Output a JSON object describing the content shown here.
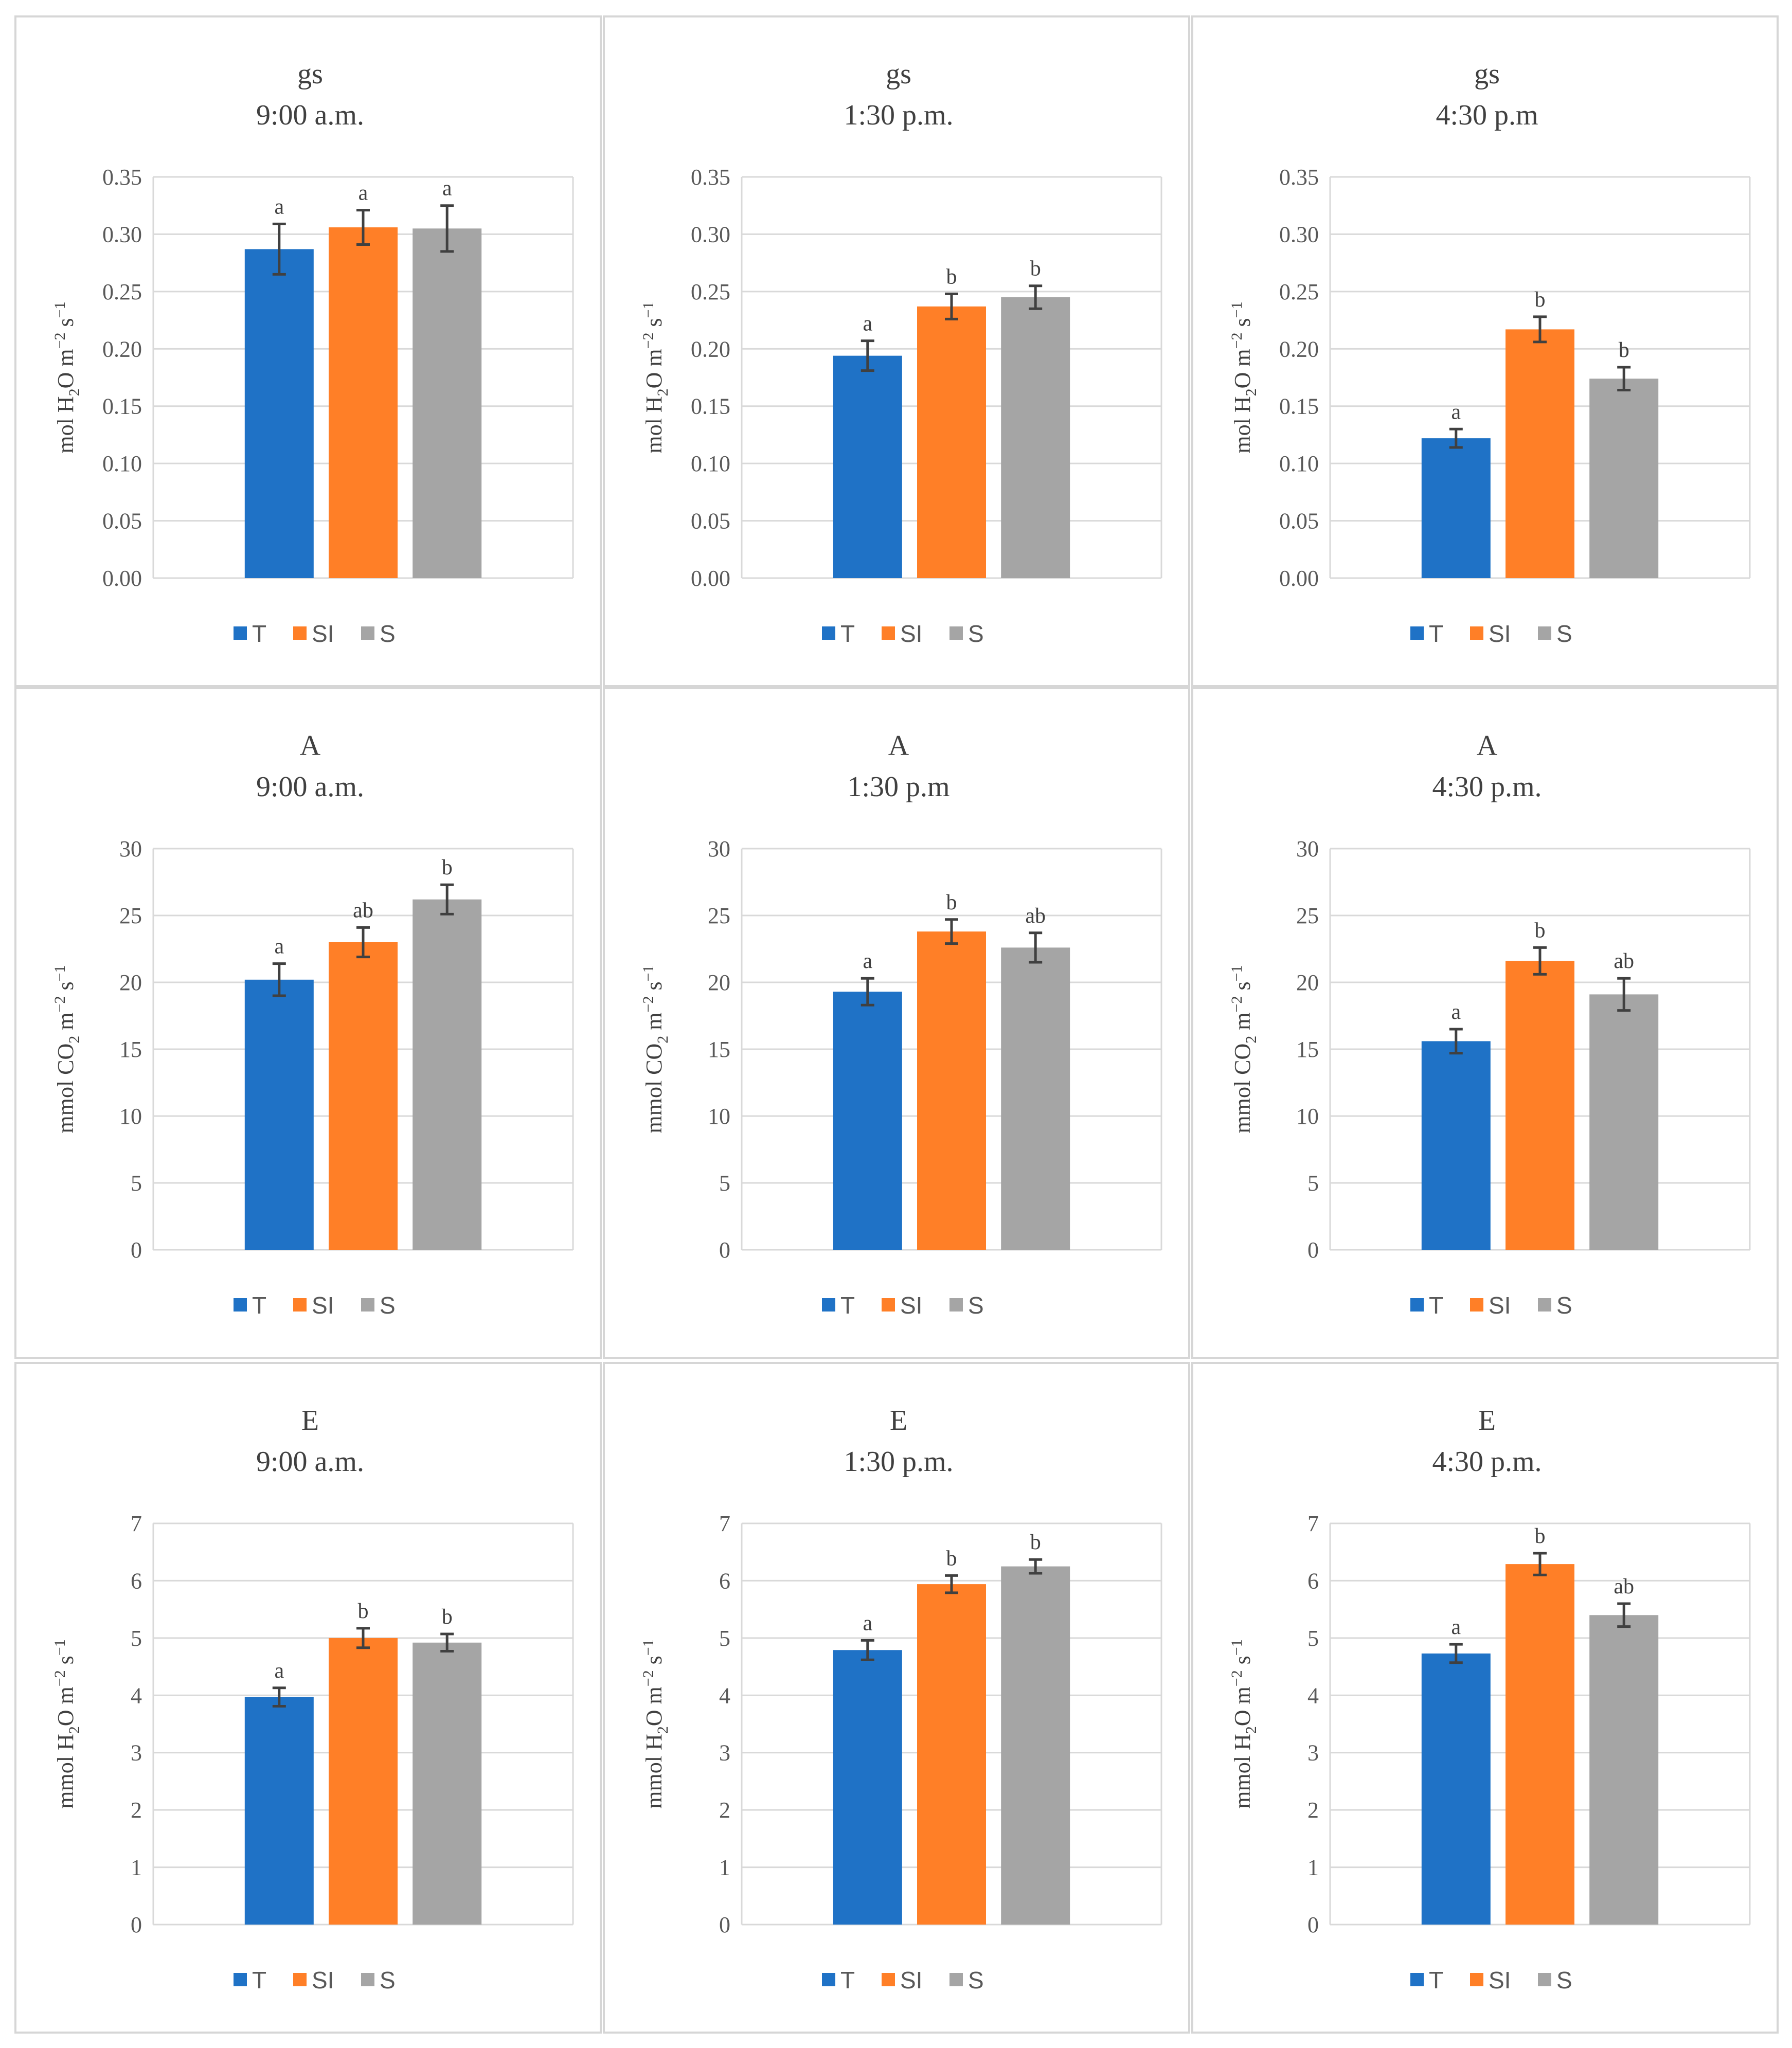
{
  "colors": {
    "T": "#1f72c6",
    "SI": "#ff7f27",
    "S": "#a5a5a5",
    "grid": "#d9d9d9",
    "error": "#404040"
  },
  "chart_data": [
    {
      "type": "bar",
      "variable": "gs",
      "time": "9:00 a.m.",
      "ylabel": [
        "mol H",
        "2",
        "O m",
        "−2",
        " s",
        "−1"
      ],
      "ylim": [
        0,
        0.35
      ],
      "tick_step": 0.05,
      "decimals": 2,
      "categories": [
        "T",
        "SI",
        "S"
      ],
      "values": [
        0.287,
        0.306,
        0.305
      ],
      "errors": [
        0.022,
        0.015,
        0.02
      ],
      "letters": [
        "a",
        "a",
        "a"
      ],
      "legend": [
        "T",
        "SI",
        "S"
      ]
    },
    {
      "type": "bar",
      "variable": "gs",
      "time": "1:30 p.m.",
      "ylabel": [
        "mol H",
        "2",
        "O m",
        "−2",
        " s",
        "−1"
      ],
      "ylim": [
        0,
        0.35
      ],
      "tick_step": 0.05,
      "decimals": 2,
      "categories": [
        "T",
        "SI",
        "S"
      ],
      "values": [
        0.194,
        0.237,
        0.245
      ],
      "errors": [
        0.013,
        0.011,
        0.01
      ],
      "letters": [
        "a",
        "b",
        "b"
      ],
      "legend": [
        "T",
        "SI",
        "S"
      ]
    },
    {
      "type": "bar",
      "variable": "gs",
      "time": "4:30 p.m",
      "ylabel": [
        "mol H",
        "2",
        "O m",
        "−2",
        " s",
        "−1"
      ],
      "ylim": [
        0,
        0.35
      ],
      "tick_step": 0.05,
      "decimals": 2,
      "categories": [
        "T",
        "SI",
        "S"
      ],
      "values": [
        0.122,
        0.217,
        0.174
      ],
      "errors": [
        0.008,
        0.011,
        0.01
      ],
      "letters": [
        "a",
        "b",
        "b"
      ],
      "legend": [
        "T",
        "SI",
        "S"
      ]
    },
    {
      "type": "bar",
      "variable": "A",
      "time": "9:00 a.m.",
      "ylabel": [
        "mmol CO",
        "2",
        " m",
        "−2",
        " s",
        "−1"
      ],
      "ylim": [
        0,
        30
      ],
      "tick_step": 5,
      "decimals": 0,
      "categories": [
        "T",
        "SI",
        "S"
      ],
      "values": [
        20.2,
        23.0,
        26.2
      ],
      "errors": [
        1.2,
        1.1,
        1.1
      ],
      "letters": [
        "a",
        "ab",
        "b"
      ],
      "legend": [
        "T",
        "SI",
        "S"
      ]
    },
    {
      "type": "bar",
      "variable": "A",
      "time": "1:30 p.m",
      "ylabel": [
        "mmol CO",
        "2",
        " m",
        "−2",
        " s",
        "−1"
      ],
      "ylim": [
        0,
        30
      ],
      "tick_step": 5,
      "decimals": 0,
      "categories": [
        "T",
        "SI",
        "S"
      ],
      "values": [
        19.3,
        23.8,
        22.6
      ],
      "errors": [
        1.0,
        0.9,
        1.1
      ],
      "letters": [
        "a",
        "b",
        "ab"
      ],
      "legend": [
        "T",
        "SI",
        "S"
      ]
    },
    {
      "type": "bar",
      "variable": "A",
      "time": "4:30 p.m.",
      "ylabel": [
        "mmol CO",
        "2",
        " m",
        "−2",
        " s",
        "−1"
      ],
      "ylim": [
        0,
        30
      ],
      "tick_step": 5,
      "decimals": 0,
      "categories": [
        "T",
        "SI",
        "S"
      ],
      "values": [
        15.6,
        21.6,
        19.1
      ],
      "errors": [
        0.9,
        1.0,
        1.2
      ],
      "letters": [
        "a",
        "b",
        "ab"
      ],
      "legend": [
        "T",
        "SI",
        "S"
      ]
    },
    {
      "type": "bar",
      "variable": "E",
      "time": "9:00 a.m.",
      "ylabel": [
        "mmol H",
        "2",
        "O m",
        "−2",
        " s",
        "−1"
      ],
      "ylim": [
        0,
        7
      ],
      "tick_step": 1,
      "decimals": 0,
      "categories": [
        "T",
        "SI",
        "S"
      ],
      "values": [
        3.97,
        5.0,
        4.92
      ],
      "errors": [
        0.16,
        0.17,
        0.15
      ],
      "letters": [
        "a",
        "b",
        "b"
      ],
      "legend": [
        "T",
        "SI",
        "S"
      ]
    },
    {
      "type": "bar",
      "variable": "E",
      "time": "1:30 p.m.",
      "ylabel": [
        "mmol H",
        "2",
        "O m",
        "−2",
        " s",
        "−1"
      ],
      "ylim": [
        0,
        7
      ],
      "tick_step": 1,
      "decimals": 0,
      "categories": [
        "T",
        "SI",
        "S"
      ],
      "values": [
        4.79,
        5.94,
        6.25
      ],
      "errors": [
        0.17,
        0.15,
        0.12
      ],
      "letters": [
        "a",
        "b",
        "b"
      ],
      "legend": [
        "T",
        "SI",
        "S"
      ]
    },
    {
      "type": "bar",
      "variable": "E",
      "time": "4:30 p.m.",
      "ylabel": [
        "mmol H",
        "2",
        "O m",
        "−2",
        " s",
        "−1"
      ],
      "ylim": [
        0,
        7
      ],
      "tick_step": 1,
      "decimals": 0,
      "categories": [
        "T",
        "SI",
        "S"
      ],
      "values": [
        4.73,
        6.29,
        5.4
      ],
      "errors": [
        0.16,
        0.19,
        0.2
      ],
      "letters": [
        "a",
        "b",
        "ab"
      ],
      "legend": [
        "T",
        "SI",
        "S"
      ]
    }
  ]
}
